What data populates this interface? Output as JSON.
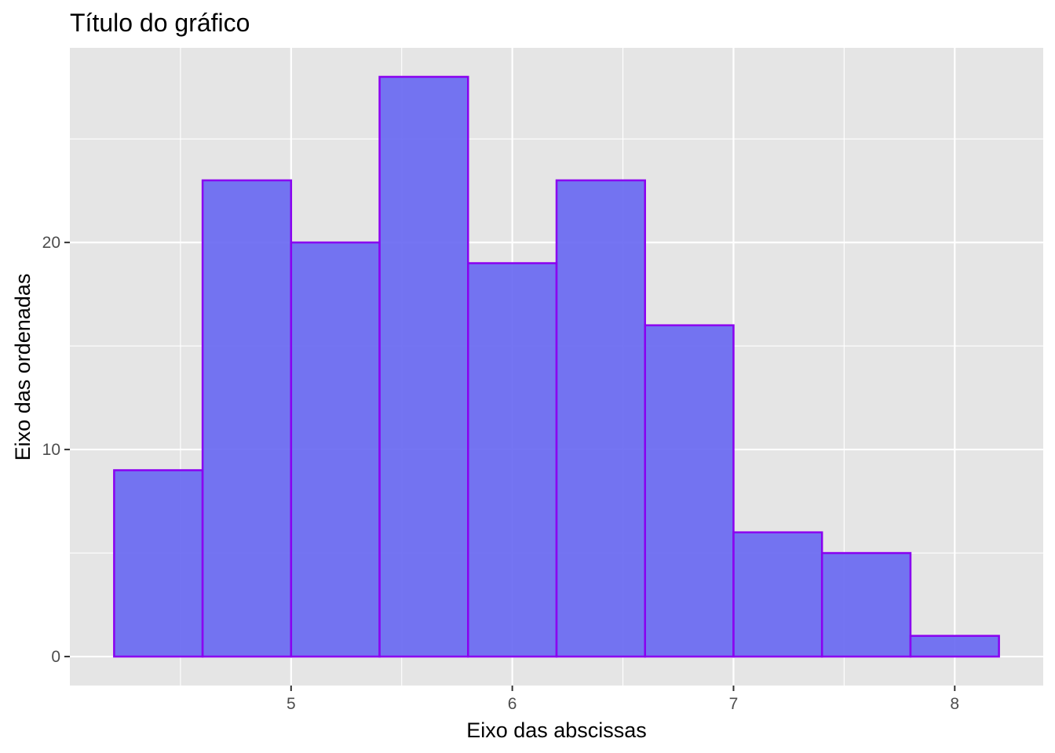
{
  "chart_data": {
    "type": "histogram",
    "title": "Título do gráfico",
    "xlabel": "Eixo das abscissas",
    "ylabel": "Eixo das ordenadas",
    "bin_width": 0.4,
    "bins": [
      {
        "x_start": 4.2,
        "x_end": 4.6,
        "count": 9
      },
      {
        "x_start": 4.6,
        "x_end": 5.0,
        "count": 23
      },
      {
        "x_start": 5.0,
        "x_end": 5.4,
        "count": 20
      },
      {
        "x_start": 5.4,
        "x_end": 5.8,
        "count": 28
      },
      {
        "x_start": 5.8,
        "x_end": 6.2,
        "count": 19
      },
      {
        "x_start": 6.2,
        "x_end": 6.6,
        "count": 23
      },
      {
        "x_start": 6.6,
        "x_end": 7.0,
        "count": 16
      },
      {
        "x_start": 7.0,
        "x_end": 7.4,
        "count": 6
      },
      {
        "x_start": 7.4,
        "x_end": 7.8,
        "count": 5
      },
      {
        "x_start": 7.8,
        "x_end": 8.2,
        "count": 1
      }
    ],
    "xlim": [
      4.0,
      8.4
    ],
    "ylim": [
      -1.4,
      29.4
    ],
    "x_ticks": [
      5,
      6,
      7,
      8
    ],
    "x_tick_labels": [
      "5",
      "6",
      "7",
      "8"
    ],
    "x_minor_ticks": [
      4.5,
      5.5,
      6.5,
      7.5
    ],
    "y_ticks": [
      0,
      10,
      20
    ],
    "y_tick_labels": [
      "0",
      "10",
      "20"
    ],
    "y_minor_ticks": [
      5,
      15,
      25
    ],
    "grid": true,
    "legend": "none",
    "colors": {
      "bar_fill": "#6666f2",
      "bar_stroke": "#8a00f0",
      "panel_background": "#e5e5e5",
      "grid": "#ffffff"
    }
  }
}
